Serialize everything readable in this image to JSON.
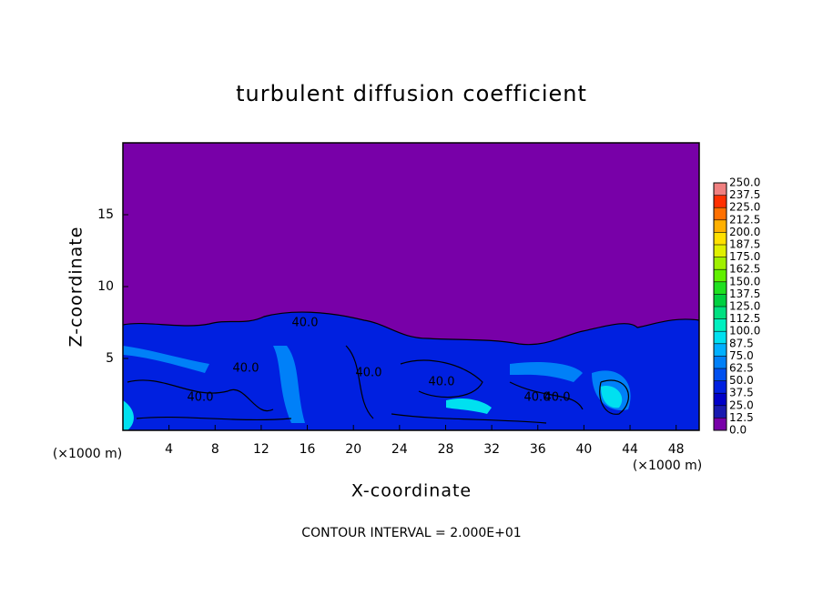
{
  "chart_data": {
    "type": "contour",
    "title": "turbulent diffusion coefficient",
    "xlabel": "X-coordinate",
    "ylabel": "Z-coordinate",
    "x_unit_label": "(×1000 m)",
    "footnote": "CONTOUR INTERVAL = 2.000E+01",
    "xlim": [
      0,
      50
    ],
    "xticks": [
      4,
      8,
      12,
      16,
      20,
      24,
      28,
      32,
      36,
      40,
      44,
      48
    ],
    "ylim": [
      0,
      20
    ],
    "yticks": [
      5,
      10,
      15
    ],
    "contour_labels": [
      {
        "value": 40,
        "label": "40.0"
      },
      {
        "value": 40,
        "label": "40.0"
      },
      {
        "value": 40,
        "label": "40.0"
      },
      {
        "value": 40,
        "label": "40.0"
      },
      {
        "value": 40,
        "label": "40.0"
      },
      {
        "value": 40,
        "label": "40.0"
      },
      {
        "value": 40,
        "label": "40.0"
      }
    ],
    "colorbar": {
      "levels": [
        {
          "value": 0,
          "label": "0.0"
        },
        {
          "value": 12.5,
          "label": "12.5"
        },
        {
          "value": 25,
          "label": "25.0"
        },
        {
          "value": 37.5,
          "label": "37.5"
        },
        {
          "value": 50,
          "label": "50.0"
        },
        {
          "value": 62.5,
          "label": "62.5"
        },
        {
          "value": 75,
          "label": "75.0"
        },
        {
          "value": 87.5,
          "label": "87.5"
        },
        {
          "value": 100,
          "label": "100.0"
        },
        {
          "value": 112.5,
          "label": "112.5"
        },
        {
          "value": 125,
          "label": "125.0"
        },
        {
          "value": 137.5,
          "label": "137.5"
        },
        {
          "value": 150,
          "label": "150.0"
        },
        {
          "value": 162.5,
          "label": "162.5"
        },
        {
          "value": 175,
          "label": "175.0"
        },
        {
          "value": 187.5,
          "label": "187.5"
        },
        {
          "value": 200,
          "label": "200.0"
        },
        {
          "value": 212.5,
          "label": "212.5"
        },
        {
          "value": 225,
          "label": "225.0"
        },
        {
          "value": 237.5,
          "label": "237.5"
        },
        {
          "value": 250,
          "label": "250.0"
        }
      ],
      "colors": [
        "#7800a8",
        "#1a1ab0",
        "#0000c8",
        "#0020e0",
        "#0050f0",
        "#0080f8",
        "#00b0ff",
        "#00e0f0",
        "#00f0c0",
        "#00e080",
        "#00d040",
        "#20e020",
        "#60f000",
        "#a0f000",
        "#e0f000",
        "#ffe000",
        "#ffb000",
        "#ff7000",
        "#ff3000",
        "#f08080"
      ]
    }
  }
}
